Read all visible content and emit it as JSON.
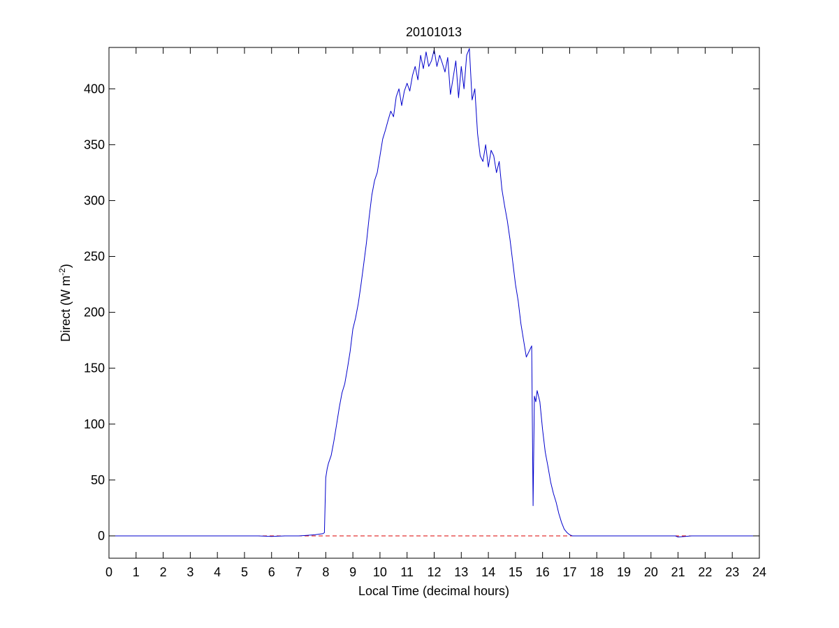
{
  "chart_data": {
    "type": "line",
    "title": "20101013",
    "xlabel": "Local Time (decimal hours)",
    "ylabel_main": "Direct (W m",
    "ylabel_sup": "-2",
    "ylabel_close": ")",
    "xlim": [
      0,
      24
    ],
    "ylim": [
      -20,
      437
    ],
    "x_ticks": [
      0,
      1,
      2,
      3,
      4,
      5,
      6,
      7,
      8,
      9,
      10,
      11,
      12,
      13,
      14,
      15,
      16,
      17,
      18,
      19,
      20,
      21,
      22,
      23,
      24
    ],
    "y_ticks": [
      0,
      50,
      100,
      150,
      200,
      250,
      300,
      350,
      400
    ],
    "grid": false,
    "colors": {
      "series": "#0000cc",
      "reference": "#dd0000",
      "axes": "#000000",
      "background": "#ffffff"
    },
    "series": [
      {
        "style": "solid",
        "x": [
          0,
          0.5,
          1,
          1.5,
          2,
          2.5,
          3,
          3.5,
          4,
          4.5,
          5,
          5.5,
          6,
          6.5,
          7,
          7.3,
          7.6,
          7.9,
          7.95,
          8.0,
          8.05,
          8.1,
          8.2,
          8.3,
          8.4,
          8.5,
          8.6,
          8.7,
          8.8,
          8.9,
          9.0,
          9.1,
          9.2,
          9.3,
          9.4,
          9.5,
          9.6,
          9.7,
          9.8,
          9.9,
          10.0,
          10.1,
          10.2,
          10.3,
          10.4,
          10.5,
          10.6,
          10.7,
          10.8,
          10.9,
          11.0,
          11.1,
          11.2,
          11.3,
          11.4,
          11.5,
          11.6,
          11.7,
          11.8,
          11.9,
          12.0,
          12.1,
          12.2,
          12.3,
          12.4,
          12.5,
          12.6,
          12.7,
          12.8,
          12.9,
          13.0,
          13.1,
          13.2,
          13.3,
          13.4,
          13.5,
          13.6,
          13.7,
          13.8,
          13.9,
          14.0,
          14.1,
          14.2,
          14.3,
          14.4,
          14.5,
          14.6,
          14.7,
          14.8,
          14.9,
          15.0,
          15.1,
          15.2,
          15.3,
          15.4,
          15.5,
          15.6,
          15.65,
          15.7,
          15.75,
          15.8,
          15.9,
          16.0,
          16.1,
          16.2,
          16.3,
          16.4,
          16.5,
          16.6,
          16.7,
          16.8,
          16.9,
          17.0,
          17.1,
          17.2,
          17.3,
          17.5,
          18,
          18.5,
          19,
          19.5,
          20,
          20.5,
          20.9,
          21,
          21.5,
          22,
          22.5,
          23,
          23.5,
          24
        ],
        "y": [
          0,
          0,
          0,
          0,
          0,
          0,
          0,
          0,
          0,
          0,
          0,
          0,
          -0.5,
          0,
          0,
          0.5,
          1,
          2,
          3,
          52,
          60,
          65,
          72,
          85,
          100,
          115,
          128,
          136,
          150,
          165,
          185,
          195,
          208,
          225,
          243,
          262,
          285,
          305,
          318,
          325,
          340,
          355,
          363,
          372,
          380,
          375,
          393,
          400,
          385,
          398,
          405,
          398,
          412,
          420,
          408,
          430,
          418,
          433,
          420,
          425,
          435,
          420,
          430,
          423,
          415,
          428,
          395,
          410,
          425,
          392,
          420,
          400,
          430,
          436,
          390,
          400,
          360,
          340,
          335,
          350,
          330,
          345,
          340,
          325,
          335,
          310,
          295,
          282,
          265,
          245,
          225,
          210,
          190,
          175,
          160,
          165,
          170,
          27,
          125,
          120,
          130,
          120,
          95,
          75,
          62,
          48,
          38,
          30,
          20,
          12,
          6,
          3,
          1,
          0,
          0,
          0,
          0,
          0,
          0,
          0,
          0,
          0,
          0,
          0,
          -1,
          0,
          0,
          0,
          0,
          0,
          0
        ]
      },
      {
        "style": "dashed",
        "x": [
          0,
          24
        ],
        "y": [
          0,
          0
        ]
      }
    ]
  }
}
